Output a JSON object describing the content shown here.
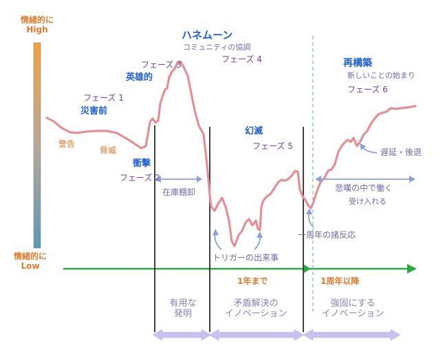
{
  "y_axis": {
    "high_label_1": "情緒的に",
    "high_label_2": "High",
    "low_label_1": "情緒的に",
    "low_label_2": "Low"
  },
  "phases": {
    "p1": {
      "name": "災害前",
      "label": "フェーズ 1"
    },
    "p2": {
      "name": "衝撃",
      "label": "フェーズ 2"
    },
    "p3": {
      "name": "英雄的",
      "label": "フェーズ 3"
    },
    "p4": {
      "name": "ハネムーン",
      "sub": "コミュニティの協調",
      "label": "フェーズ 4"
    },
    "p5": {
      "name": "幻滅",
      "label": "フェーズ 5"
    },
    "p6": {
      "name": "再構築",
      "sub": "新しいことの始まり",
      "label": "フェーズ 6"
    }
  },
  "annotations": {
    "warning": "警告",
    "threat": "脅威",
    "inventory": "在庫棚卸",
    "trigger": "トリガーの出来事",
    "anniversary": "一周年の諸反応",
    "setback": "遅延・後退",
    "grief_work": "悲嘆の中で働く",
    "acceptance": "受け入れる"
  },
  "timeline": {
    "until_1yr": "1年まで",
    "after_1yr": "1周年以降"
  },
  "innovation": {
    "useful": [
      "有用な",
      "発明"
    ],
    "resolve": [
      "矛盾解決の",
      "イノベーション"
    ],
    "strengthen": [
      "強固にする",
      "イノベーション"
    ]
  },
  "colors": {
    "curve": "#e58f95",
    "timeline": "#2ca845",
    "orange": "#e07a2e",
    "blue": "#1f5fd6",
    "purple": "#6a3fa2",
    "lavender": "#b9b3e8"
  }
}
